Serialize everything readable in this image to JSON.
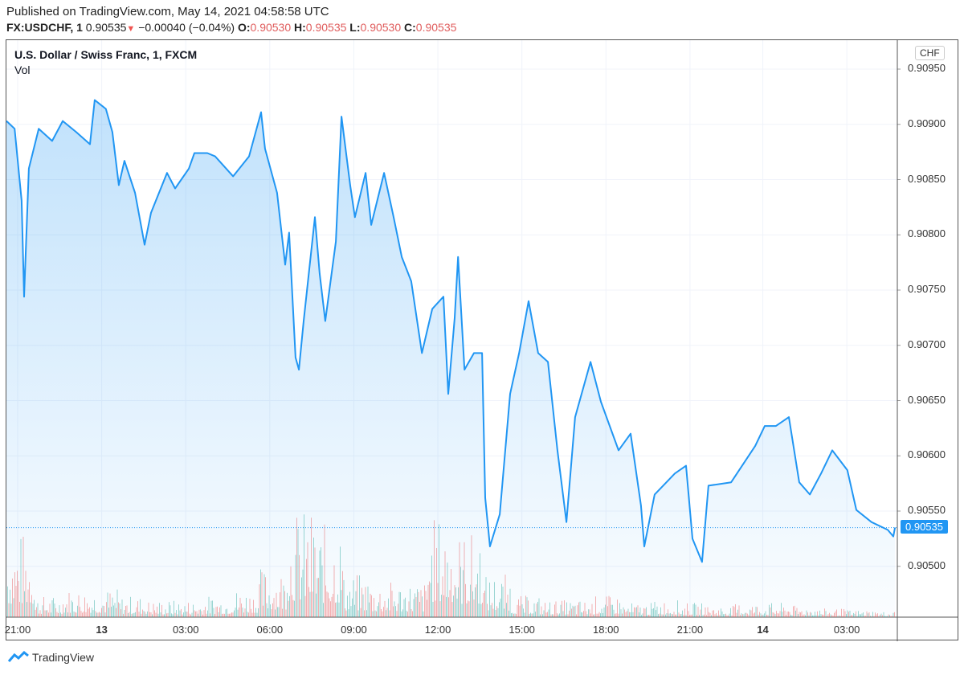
{
  "header": {
    "published": "Published on TradingView.com, May 14, 2021 04:58:58 UTC",
    "symbol": "FX:USDCHF, 1",
    "last": "0.90535",
    "change": "−0.00040 (−0.04%)",
    "o_label": "O:",
    "o": "0.90530",
    "h_label": "H:",
    "h": "0.90535",
    "l_label": "L:",
    "l": "0.90530",
    "c_label": "C:",
    "c": "0.90535",
    "down_arrow": "▼"
  },
  "legend": {
    "title": "U.S. Dollar / Swiss Franc, 1, FXCM",
    "vol": "Vol"
  },
  "currency": "CHF",
  "footer": {
    "brand": "TradingView"
  },
  "colors": {
    "line": "#2196f3",
    "up": "#26a69a",
    "down": "#ef5350"
  },
  "chart_data": {
    "type": "area",
    "title": "U.S. Dollar / Swiss Franc, 1, FXCM",
    "x_unit": "hours since May 12 21:00 UTC",
    "ylim": [
      0.90473,
      0.90978
    ],
    "xlim": [
      -0.4,
      31.5
    ],
    "y_ticks": [
      "0.90950",
      "0.90900",
      "0.90850",
      "0.90800",
      "0.90750",
      "0.90700",
      "0.90650",
      "0.90600",
      "0.90550",
      "0.90500"
    ],
    "x_ticks": [
      {
        "h": 0,
        "label": "21:00"
      },
      {
        "h": 3,
        "label": "13",
        "bold": true
      },
      {
        "h": 6,
        "label": "03:00"
      },
      {
        "h": 9,
        "label": "06:00"
      },
      {
        "h": 12,
        "label": "09:00"
      },
      {
        "h": 15,
        "label": "12:00"
      },
      {
        "h": 18,
        "label": "15:00"
      },
      {
        "h": 21,
        "label": "18:00"
      },
      {
        "h": 24,
        "label": "21:00"
      },
      {
        "h": 26.6,
        "label": "14",
        "bold": true
      },
      {
        "h": 29.6,
        "label": "03:00"
      }
    ],
    "last_price": "0.90535",
    "series": [
      [
        -0.4,
        0.90903
      ],
      [
        -0.11,
        0.90896
      ],
      [
        0.14,
        0.90831
      ],
      [
        0.23,
        0.90744
      ],
      [
        0.4,
        0.9086
      ],
      [
        0.75,
        0.90896
      ],
      [
        1.23,
        0.90885
      ],
      [
        1.61,
        0.90903
      ],
      [
        2.09,
        0.90893
      ],
      [
        2.58,
        0.90882
      ],
      [
        2.75,
        0.90922
      ],
      [
        3.15,
        0.90914
      ],
      [
        3.38,
        0.90893
      ],
      [
        3.61,
        0.90845
      ],
      [
        3.81,
        0.90867
      ],
      [
        4.19,
        0.90838
      ],
      [
        4.53,
        0.90791
      ],
      [
        4.76,
        0.9082
      ],
      [
        5.33,
        0.90856
      ],
      [
        5.62,
        0.90842
      ],
      [
        6.11,
        0.9086
      ],
      [
        6.31,
        0.90874
      ],
      [
        6.77,
        0.90874
      ],
      [
        7.05,
        0.90871
      ],
      [
        7.69,
        0.90853
      ],
      [
        8.26,
        0.90871
      ],
      [
        8.69,
        0.90911
      ],
      [
        8.83,
        0.90878
      ],
      [
        9.26,
        0.90838
      ],
      [
        9.55,
        0.90773
      ],
      [
        9.69,
        0.90802
      ],
      [
        9.92,
        0.90689
      ],
      [
        10.04,
        0.90678
      ],
      [
        10.21,
        0.90722
      ],
      [
        10.61,
        0.90816
      ],
      [
        10.78,
        0.90765
      ],
      [
        10.98,
        0.90722
      ],
      [
        11.36,
        0.90794
      ],
      [
        11.56,
        0.90907
      ],
      [
        11.87,
        0.90845
      ],
      [
        12.04,
        0.90816
      ],
      [
        12.42,
        0.90856
      ],
      [
        12.62,
        0.90809
      ],
      [
        13.08,
        0.90856
      ],
      [
        13.42,
        0.90816
      ],
      [
        13.71,
        0.9078
      ],
      [
        14.05,
        0.90758
      ],
      [
        14.43,
        0.90693
      ],
      [
        14.8,
        0.90733
      ],
      [
        15.2,
        0.90744
      ],
      [
        15.37,
        0.90656
      ],
      [
        15.6,
        0.90725
      ],
      [
        15.72,
        0.9078
      ],
      [
        15.95,
        0.90678
      ],
      [
        16.29,
        0.90693
      ],
      [
        16.58,
        0.90693
      ],
      [
        16.69,
        0.90562
      ],
      [
        16.86,
        0.90518
      ],
      [
        17.21,
        0.90547
      ],
      [
        17.58,
        0.90656
      ],
      [
        17.9,
        0.90693
      ],
      [
        18.24,
        0.9074
      ],
      [
        18.58,
        0.90693
      ],
      [
        18.93,
        0.90685
      ],
      [
        19.27,
        0.90605
      ],
      [
        19.59,
        0.9054
      ],
      [
        19.9,
        0.90635
      ],
      [
        20.45,
        0.90685
      ],
      [
        20.82,
        0.90649
      ],
      [
        21.45,
        0.90605
      ],
      [
        21.88,
        0.9062
      ],
      [
        22.25,
        0.90555
      ],
      [
        22.37,
        0.90518
      ],
      [
        22.74,
        0.90565
      ],
      [
        23.46,
        0.90584
      ],
      [
        23.86,
        0.90591
      ],
      [
        24.09,
        0.90525
      ],
      [
        24.43,
        0.90504
      ],
      [
        24.66,
        0.90573
      ],
      [
        25.47,
        0.90576
      ],
      [
        26.33,
        0.90609
      ],
      [
        26.67,
        0.90627
      ],
      [
        27.07,
        0.90627
      ],
      [
        27.53,
        0.90635
      ],
      [
        27.9,
        0.90576
      ],
      [
        28.28,
        0.90565
      ],
      [
        28.68,
        0.90584
      ],
      [
        29.08,
        0.90605
      ],
      [
        29.62,
        0.90587
      ],
      [
        29.94,
        0.90551
      ],
      [
        30.48,
        0.9054
      ],
      [
        31.06,
        0.90533
      ],
      [
        31.26,
        0.90527
      ],
      [
        31.32,
        0.90535
      ]
    ],
    "volume_relative_by_hour": [
      0.6,
      0.15,
      0.2,
      0.2,
      0.15,
      0.12,
      0.12,
      0.15,
      0.2,
      0.35,
      0.75,
      0.65,
      0.3,
      0.25,
      0.25,
      0.7,
      0.6,
      0.3,
      0.15,
      0.12,
      0.12,
      0.15,
      0.1,
      0.12,
      0.1,
      0.08,
      0.1,
      0.1,
      0.08,
      0.06,
      0.05,
      0.04
    ]
  }
}
